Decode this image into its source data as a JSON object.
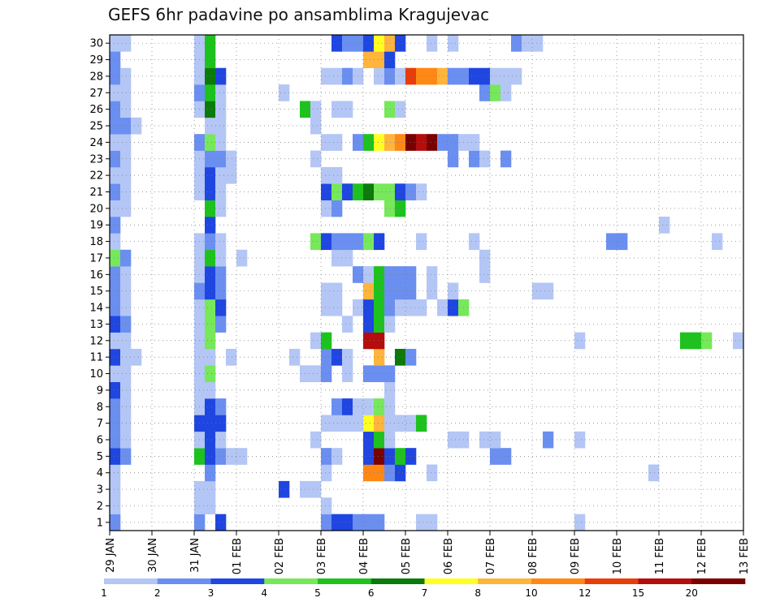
{
  "chart_data": {
    "type": "heatmap",
    "title": "GEFS 6hr padavine po ansamblima Kragujevac",
    "xlabel": "",
    "ylabel": "",
    "x_ticks": [
      "29 JAN",
      "30 JAN",
      "31 JAN",
      "01 FEB",
      "02 FEB",
      "03 FEB",
      "04 FEB",
      "05 FEB",
      "06 FEB",
      "07 FEB",
      "08 FEB",
      "09 FEB",
      "10 FEB",
      "11 FEB",
      "12 FEB",
      "13 FEB"
    ],
    "y_ticks": [
      "1",
      "2",
      "3",
      "4",
      "5",
      "6",
      "7",
      "8",
      "9",
      "10",
      "11",
      "12",
      "13",
      "14",
      "15",
      "16",
      "17",
      "18",
      "19",
      "20",
      "21",
      "22",
      "23",
      "24",
      "25",
      "26",
      "27",
      "28",
      "29",
      "30"
    ],
    "time_steps": 60,
    "members": 30,
    "grid": true,
    "legend": {
      "position": "bottom",
      "labels": [
        "1",
        "2",
        "3",
        "4",
        "5",
        "6",
        "7",
        "8",
        "10",
        "12",
        "15",
        "20"
      ],
      "colors": [
        "#b4c6f5",
        "#6a8ff0",
        "#1f46e0",
        "#76e85a",
        "#1ec21e",
        "#0b7a0b",
        "#ffff22",
        "#ffb43c",
        "#ff8814",
        "#e83c0a",
        "#b50c0c",
        "#7a0000"
      ]
    },
    "cells": [
      [
        1,
        1,
        2
      ],
      [
        1,
        9,
        2
      ],
      [
        1,
        11,
        3
      ],
      [
        1,
        21,
        2
      ],
      [
        1,
        22,
        3
      ],
      [
        1,
        23,
        3
      ],
      [
        1,
        24,
        2
      ],
      [
        1,
        25,
        2
      ],
      [
        1,
        26,
        2
      ],
      [
        1,
        30,
        1
      ],
      [
        1,
        31,
        1
      ],
      [
        1,
        45,
        1
      ],
      [
        2,
        1,
        1
      ],
      [
        2,
        9,
        1
      ],
      [
        2,
        10,
        1
      ],
      [
        2,
        21,
        1
      ],
      [
        3,
        1,
        1
      ],
      [
        3,
        9,
        1
      ],
      [
        3,
        10,
        1
      ],
      [
        3,
        17,
        3
      ],
      [
        3,
        19,
        1
      ],
      [
        3,
        20,
        1
      ],
      [
        4,
        1,
        1
      ],
      [
        4,
        10,
        2
      ],
      [
        4,
        21,
        1
      ],
      [
        4,
        25,
        9
      ],
      [
        4,
        26,
        9
      ],
      [
        4,
        27,
        2
      ],
      [
        4,
        28,
        3
      ],
      [
        4,
        31,
        1
      ],
      [
        4,
        52,
        1
      ],
      [
        5,
        1,
        3
      ],
      [
        5,
        2,
        2
      ],
      [
        5,
        9,
        5
      ],
      [
        5,
        10,
        3
      ],
      [
        5,
        11,
        2
      ],
      [
        5,
        12,
        1
      ],
      [
        5,
        13,
        1
      ],
      [
        5,
        21,
        2
      ],
      [
        5,
        22,
        1
      ],
      [
        5,
        25,
        3
      ],
      [
        5,
        26,
        12
      ],
      [
        5,
        27,
        3
      ],
      [
        5,
        28,
        5
      ],
      [
        5,
        29,
        3
      ],
      [
        5,
        37,
        2
      ],
      [
        5,
        38,
        2
      ],
      [
        6,
        1,
        2
      ],
      [
        6,
        2,
        1
      ],
      [
        6,
        9,
        1
      ],
      [
        6,
        10,
        3
      ],
      [
        6,
        11,
        1
      ],
      [
        6,
        20,
        1
      ],
      [
        6,
        25,
        3
      ],
      [
        6,
        26,
        5
      ],
      [
        6,
        27,
        1
      ],
      [
        6,
        33,
        1
      ],
      [
        6,
        34,
        1
      ],
      [
        6,
        36,
        1
      ],
      [
        6,
        37,
        1
      ],
      [
        6,
        42,
        2
      ],
      [
        6,
        45,
        1
      ],
      [
        7,
        1,
        2
      ],
      [
        7,
        2,
        1
      ],
      [
        7,
        9,
        3
      ],
      [
        7,
        10,
        3
      ],
      [
        7,
        11,
        3
      ],
      [
        7,
        21,
        1
      ],
      [
        7,
        22,
        1
      ],
      [
        7,
        23,
        1
      ],
      [
        7,
        24,
        1
      ],
      [
        7,
        25,
        7
      ],
      [
        7,
        26,
        8
      ],
      [
        7,
        27,
        1
      ],
      [
        7,
        28,
        1
      ],
      [
        7,
        29,
        1
      ],
      [
        7,
        30,
        5
      ],
      [
        8,
        1,
        2
      ],
      [
        8,
        2,
        1
      ],
      [
        8,
        9,
        1
      ],
      [
        8,
        10,
        3
      ],
      [
        8,
        11,
        2
      ],
      [
        8,
        22,
        2
      ],
      [
        8,
        23,
        3
      ],
      [
        8,
        24,
        1
      ],
      [
        8,
        25,
        1
      ],
      [
        8,
        26,
        4
      ],
      [
        8,
        27,
        1
      ],
      [
        9,
        1,
        3
      ],
      [
        9,
        2,
        1
      ],
      [
        9,
        9,
        1
      ],
      [
        9,
        10,
        1
      ],
      [
        9,
        27,
        1
      ],
      [
        10,
        1,
        1
      ],
      [
        10,
        2,
        1
      ],
      [
        10,
        9,
        1
      ],
      [
        10,
        10,
        4
      ],
      [
        10,
        19,
        1
      ],
      [
        10,
        20,
        1
      ],
      [
        10,
        21,
        2
      ],
      [
        10,
        23,
        1
      ],
      [
        10,
        25,
        2
      ],
      [
        10,
        26,
        2
      ],
      [
        10,
        27,
        2
      ],
      [
        11,
        1,
        3
      ],
      [
        11,
        2,
        1
      ],
      [
        11,
        3,
        1
      ],
      [
        11,
        9,
        1
      ],
      [
        11,
        10,
        1
      ],
      [
        11,
        12,
        1
      ],
      [
        11,
        18,
        1
      ],
      [
        11,
        21,
        2
      ],
      [
        11,
        22,
        3
      ],
      [
        11,
        23,
        1
      ],
      [
        11,
        26,
        8
      ],
      [
        11,
        28,
        6
      ],
      [
        11,
        29,
        2
      ],
      [
        12,
        1,
        1
      ],
      [
        12,
        2,
        1
      ],
      [
        12,
        9,
        1
      ],
      [
        12,
        10,
        4
      ],
      [
        12,
        20,
        1
      ],
      [
        12,
        21,
        5
      ],
      [
        12,
        25,
        11
      ],
      [
        12,
        26,
        11
      ],
      [
        12,
        45,
        1
      ],
      [
        12,
        55,
        5
      ],
      [
        12,
        56,
        5
      ],
      [
        12,
        57,
        4
      ],
      [
        12,
        60,
        1
      ],
      [
        13,
        1,
        3
      ],
      [
        13,
        2,
        2
      ],
      [
        13,
        9,
        1
      ],
      [
        13,
        10,
        4
      ],
      [
        13,
        11,
        2
      ],
      [
        13,
        23,
        1
      ],
      [
        13,
        25,
        3
      ],
      [
        13,
        26,
        5
      ],
      [
        13,
        27,
        1
      ],
      [
        14,
        1,
        2
      ],
      [
        14,
        2,
        1
      ],
      [
        14,
        9,
        1
      ],
      [
        14,
        10,
        4
      ],
      [
        14,
        11,
        3
      ],
      [
        14,
        21,
        1
      ],
      [
        14,
        22,
        1
      ],
      [
        14,
        24,
        1
      ],
      [
        14,
        25,
        3
      ],
      [
        14,
        26,
        5
      ],
      [
        14,
        27,
        2
      ],
      [
        14,
        28,
        1
      ],
      [
        14,
        29,
        1
      ],
      [
        14,
        30,
        1
      ],
      [
        14,
        32,
        1
      ],
      [
        14,
        33,
        3
      ],
      [
        14,
        34,
        4
      ],
      [
        15,
        1,
        2
      ],
      [
        15,
        2,
        1
      ],
      [
        15,
        9,
        2
      ],
      [
        15,
        10,
        3
      ],
      [
        15,
        11,
        2
      ],
      [
        15,
        21,
        1
      ],
      [
        15,
        22,
        1
      ],
      [
        15,
        25,
        8
      ],
      [
        15,
        26,
        5
      ],
      [
        15,
        27,
        2
      ],
      [
        15,
        28,
        2
      ],
      [
        15,
        29,
        2
      ],
      [
        15,
        31,
        1
      ],
      [
        15,
        33,
        1
      ],
      [
        15,
        41,
        1
      ],
      [
        15,
        42,
        1
      ],
      [
        16,
        1,
        2
      ],
      [
        16,
        2,
        1
      ],
      [
        16,
        9,
        1
      ],
      [
        16,
        10,
        3
      ],
      [
        16,
        11,
        2
      ],
      [
        16,
        24,
        2
      ],
      [
        16,
        25,
        1
      ],
      [
        16,
        26,
        5
      ],
      [
        16,
        27,
        2
      ],
      [
        16,
        28,
        2
      ],
      [
        16,
        29,
        2
      ],
      [
        16,
        31,
        1
      ],
      [
        16,
        36,
        1
      ],
      [
        17,
        1,
        4
      ],
      [
        17,
        2,
        2
      ],
      [
        17,
        9,
        1
      ],
      [
        17,
        10,
        5
      ],
      [
        17,
        11,
        1
      ],
      [
        17,
        13,
        1
      ],
      [
        17,
        22,
        1
      ],
      [
        17,
        23,
        1
      ],
      [
        17,
        36,
        1
      ],
      [
        18,
        1,
        1
      ],
      [
        18,
        9,
        1
      ],
      [
        18,
        10,
        2
      ],
      [
        18,
        11,
        1
      ],
      [
        18,
        20,
        4
      ],
      [
        18,
        21,
        3
      ],
      [
        18,
        22,
        2
      ],
      [
        18,
        23,
        2
      ],
      [
        18,
        24,
        2
      ],
      [
        18,
        25,
        4
      ],
      [
        18,
        26,
        3
      ],
      [
        18,
        30,
        1
      ],
      [
        18,
        35,
        1
      ],
      [
        18,
        48,
        2
      ],
      [
        18,
        49,
        2
      ],
      [
        18,
        49,
        2
      ],
      [
        18,
        58,
        1
      ],
      [
        19,
        1,
        2
      ],
      [
        19,
        10,
        3
      ],
      [
        19,
        53,
        1
      ],
      [
        20,
        1,
        1
      ],
      [
        20,
        2,
        1
      ],
      [
        20,
        10,
        5
      ],
      [
        20,
        11,
        1
      ],
      [
        20,
        21,
        1
      ],
      [
        20,
        22,
        2
      ],
      [
        20,
        27,
        4
      ],
      [
        20,
        28,
        5
      ],
      [
        21,
        1,
        2
      ],
      [
        21,
        2,
        1
      ],
      [
        21,
        9,
        1
      ],
      [
        21,
        10,
        3
      ],
      [
        21,
        11,
        1
      ],
      [
        21,
        21,
        3
      ],
      [
        21,
        22,
        4
      ],
      [
        21,
        23,
        3
      ],
      [
        21,
        24,
        5
      ],
      [
        21,
        25,
        6
      ],
      [
        21,
        26,
        4
      ],
      [
        21,
        27,
        4
      ],
      [
        21,
        28,
        3
      ],
      [
        21,
        29,
        2
      ],
      [
        21,
        30,
        1
      ],
      [
        22,
        1,
        1
      ],
      [
        22,
        2,
        1
      ],
      [
        22,
        9,
        1
      ],
      [
        22,
        10,
        3
      ],
      [
        22,
        11,
        1
      ],
      [
        22,
        12,
        1
      ],
      [
        22,
        21,
        1
      ],
      [
        22,
        22,
        1
      ],
      [
        23,
        1,
        2
      ],
      [
        23,
        2,
        1
      ],
      [
        23,
        9,
        1
      ],
      [
        23,
        10,
        2
      ],
      [
        23,
        11,
        2
      ],
      [
        23,
        12,
        1
      ],
      [
        23,
        20,
        1
      ],
      [
        23,
        33,
        2
      ],
      [
        23,
        35,
        2
      ],
      [
        23,
        36,
        1
      ],
      [
        23,
        38,
        2
      ],
      [
        24,
        1,
        1
      ],
      [
        24,
        2,
        1
      ],
      [
        24,
        9,
        2
      ],
      [
        24,
        10,
        4
      ],
      [
        24,
        11,
        1
      ],
      [
        24,
        21,
        1
      ],
      [
        24,
        22,
        1
      ],
      [
        24,
        24,
        2
      ],
      [
        24,
        25,
        5
      ],
      [
        24,
        26,
        7
      ],
      [
        24,
        27,
        8
      ],
      [
        24,
        28,
        9
      ],
      [
        24,
        29,
        12
      ],
      [
        24,
        30,
        11
      ],
      [
        24,
        31,
        12
      ],
      [
        24,
        32,
        2
      ],
      [
        24,
        33,
        2
      ],
      [
        24,
        34,
        1
      ],
      [
        24,
        35,
        1
      ],
      [
        25,
        1,
        2
      ],
      [
        25,
        2,
        2
      ],
      [
        25,
        3,
        1
      ],
      [
        25,
        10,
        1
      ],
      [
        25,
        11,
        1
      ],
      [
        25,
        20,
        1
      ],
      [
        26,
        1,
        2
      ],
      [
        26,
        2,
        1
      ],
      [
        26,
        9,
        1
      ],
      [
        26,
        10,
        6
      ],
      [
        26,
        11,
        1
      ],
      [
        26,
        19,
        5
      ],
      [
        26,
        20,
        1
      ],
      [
        26,
        22,
        1
      ],
      [
        26,
        23,
        1
      ],
      [
        26,
        27,
        4
      ],
      [
        26,
        28,
        1
      ],
      [
        27,
        1,
        1
      ],
      [
        27,
        2,
        1
      ],
      [
        27,
        9,
        2
      ],
      [
        27,
        10,
        5
      ],
      [
        27,
        11,
        1
      ],
      [
        27,
        17,
        1
      ],
      [
        27,
        36,
        2
      ],
      [
        27,
        37,
        4
      ],
      [
        27,
        38,
        1
      ],
      [
        28,
        1,
        2
      ],
      [
        28,
        2,
        1
      ],
      [
        28,
        9,
        1
      ],
      [
        28,
        10,
        6
      ],
      [
        28,
        11,
        3
      ],
      [
        28,
        21,
        1
      ],
      [
        28,
        22,
        1
      ],
      [
        28,
        23,
        2
      ],
      [
        28,
        24,
        1
      ],
      [
        28,
        26,
        1
      ],
      [
        28,
        27,
        2
      ],
      [
        28,
        28,
        1
      ],
      [
        28,
        29,
        10
      ],
      [
        28,
        30,
        9
      ],
      [
        28,
        31,
        9
      ],
      [
        28,
        32,
        8
      ],
      [
        28,
        33,
        2
      ],
      [
        28,
        34,
        2
      ],
      [
        28,
        35,
        3
      ],
      [
        28,
        36,
        3
      ],
      [
        28,
        37,
        1
      ],
      [
        28,
        38,
        1
      ],
      [
        28,
        39,
        1
      ],
      [
        29,
        1,
        2
      ],
      [
        29,
        9,
        1
      ],
      [
        29,
        10,
        5
      ],
      [
        29,
        25,
        8
      ],
      [
        29,
        26,
        8
      ],
      [
        29,
        27,
        3
      ],
      [
        30,
        1,
        1
      ],
      [
        30,
        2,
        1
      ],
      [
        30,
        9,
        1
      ],
      [
        30,
        10,
        5
      ],
      [
        30,
        22,
        3
      ],
      [
        30,
        23,
        2
      ],
      [
        30,
        24,
        2
      ],
      [
        30,
        25,
        3
      ],
      [
        30,
        26,
        7
      ],
      [
        30,
        27,
        8
      ],
      [
        30,
        28,
        3
      ],
      [
        30,
        31,
        1
      ],
      [
        30,
        33,
        1
      ],
      [
        30,
        39,
        2
      ],
      [
        30,
        40,
        1
      ],
      [
        30,
        41,
        1
      ]
    ]
  }
}
